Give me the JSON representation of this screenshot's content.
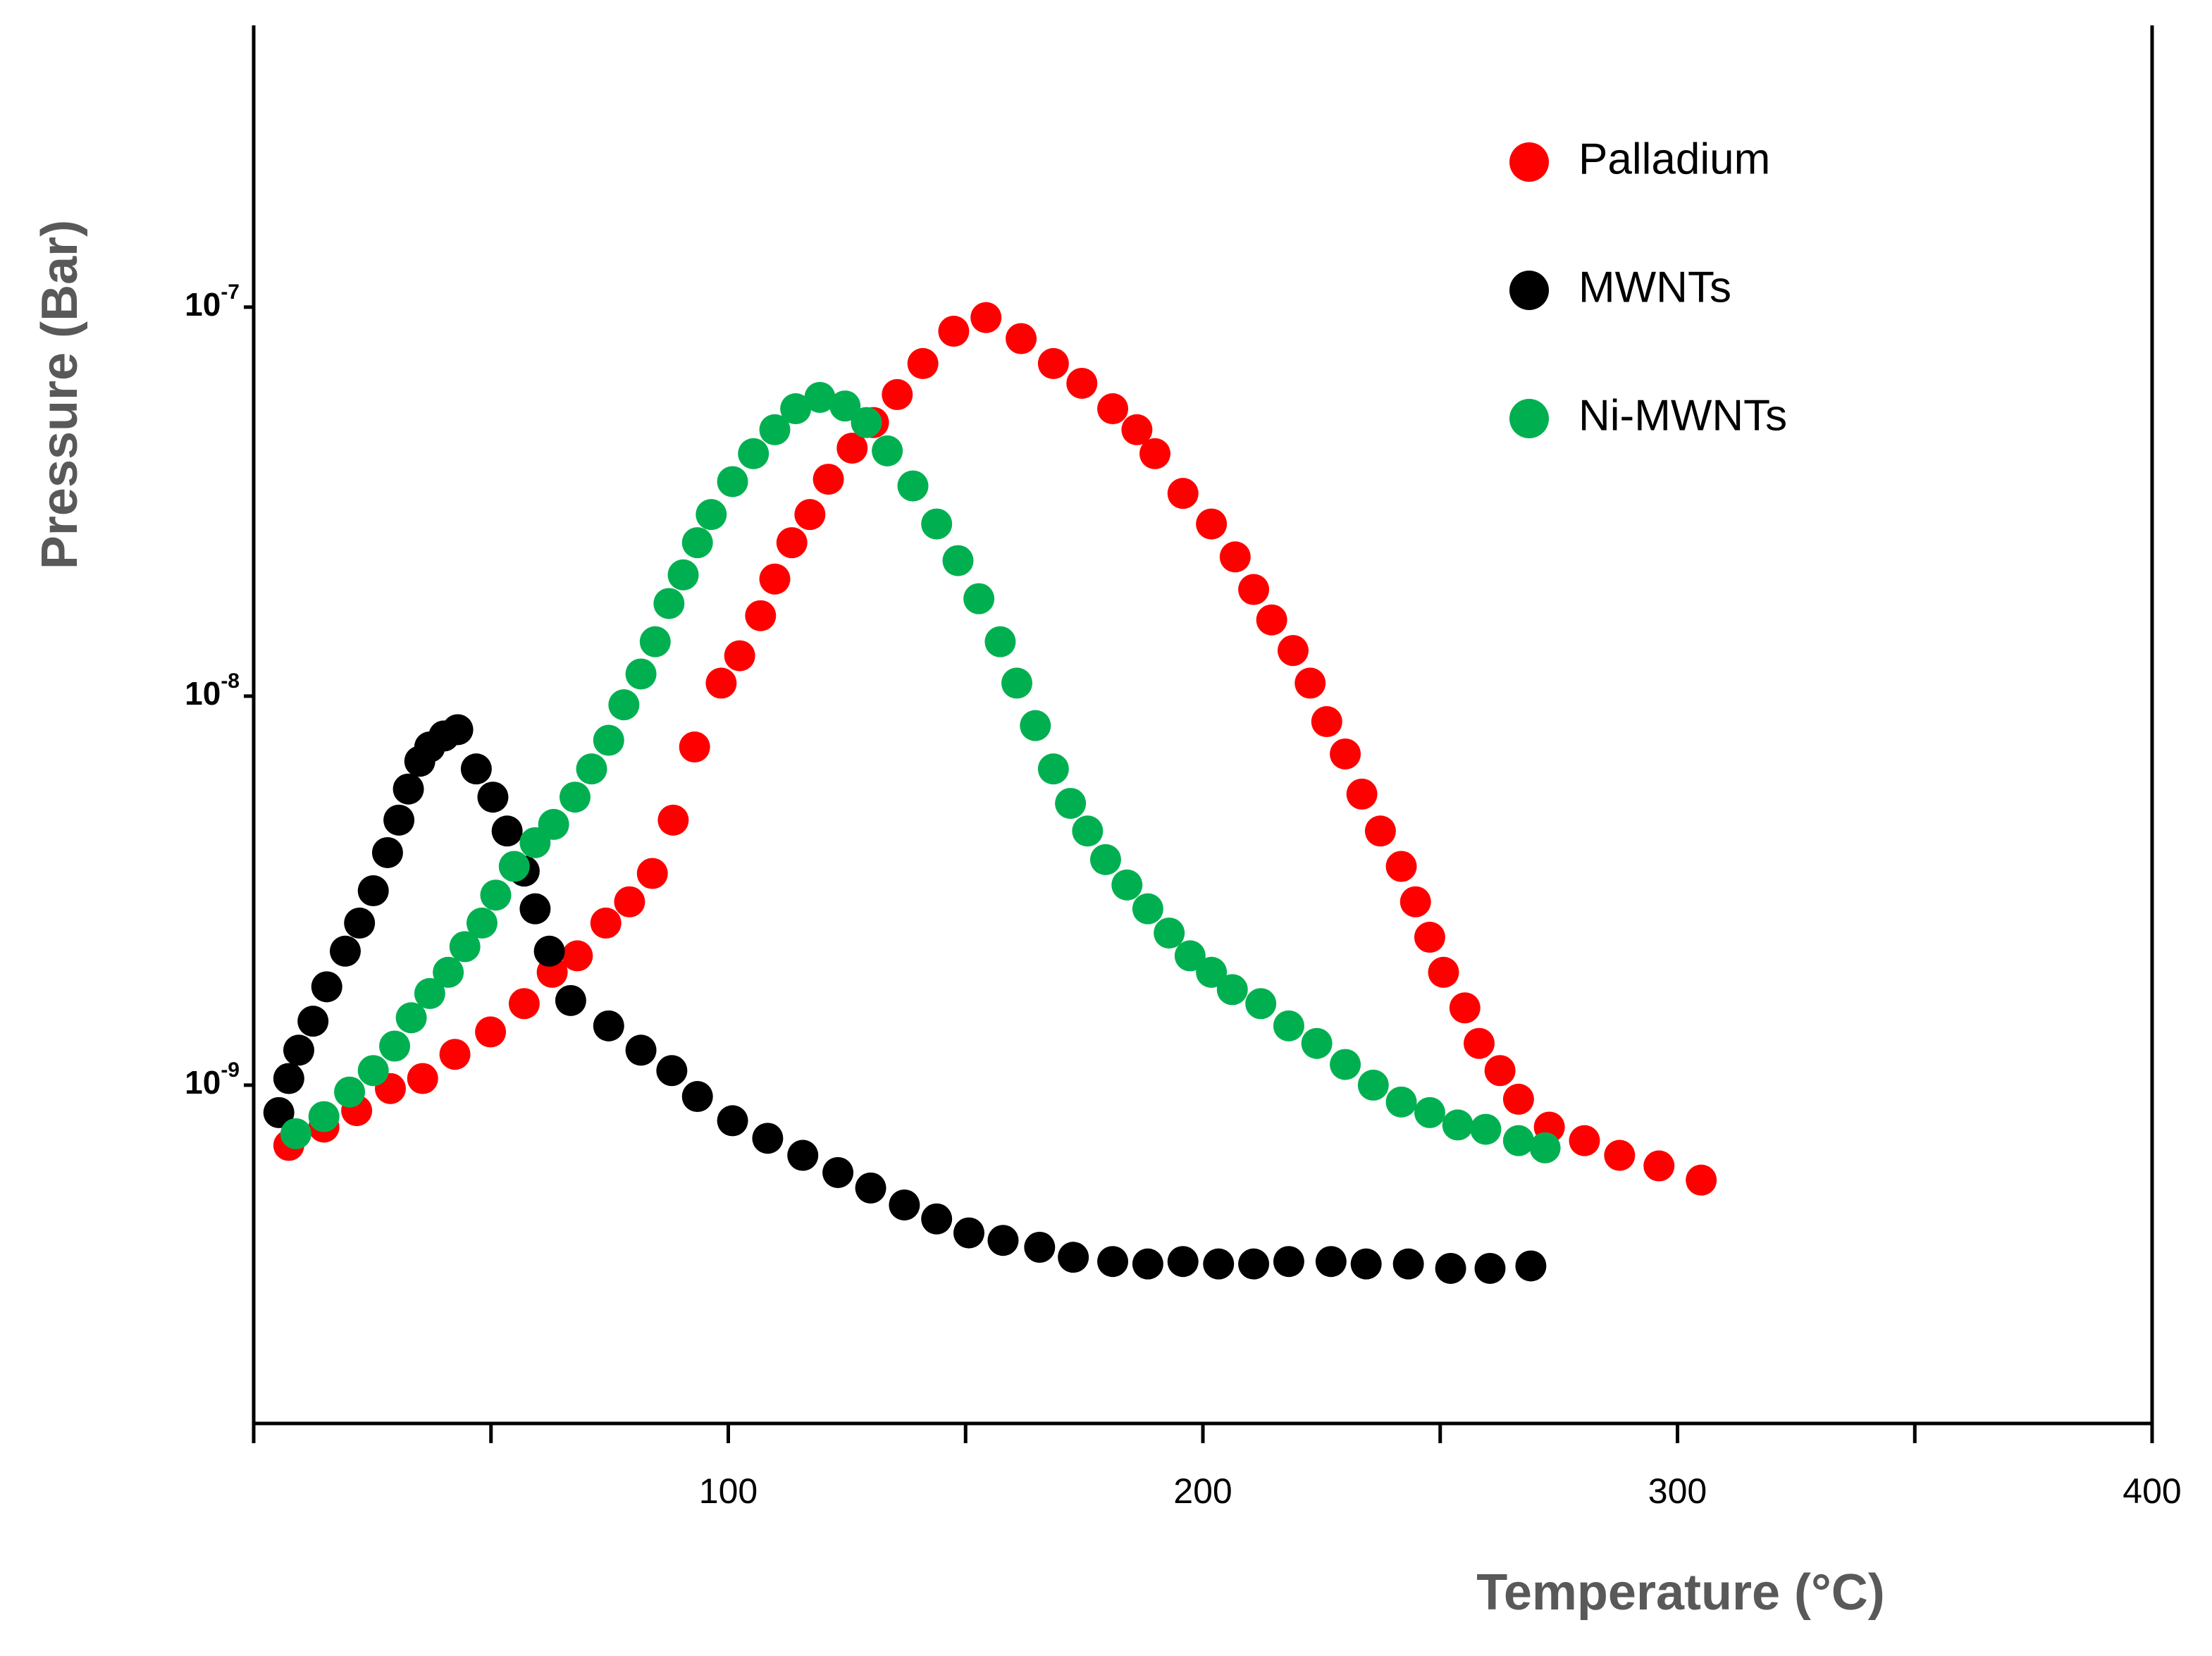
{
  "chart_data": {
    "type": "scatter",
    "xlabel": "Temperature (°C)",
    "ylabel": "Pressure (Bar)",
    "xlim": [
      0,
      400
    ],
    "xticks": [
      100,
      200,
      300,
      400
    ],
    "xminor_ticks": [
      0,
      50,
      150,
      250,
      350
    ],
    "ylim": [
      1.35e-10,
      5.3e-07
    ],
    "yscale": "log",
    "yticks": [
      {
        "value": 1e-09,
        "label": "10",
        "exponent": "-9"
      },
      {
        "value": 1e-08,
        "label": "10",
        "exponent": "-8"
      },
      {
        "value": 1e-07,
        "label": "10",
        "exponent": "-7"
      }
    ],
    "legend": "upper right",
    "grid": false,
    "series": [
      {
        "name": "Palladium",
        "color": "#ff0000",
        "x": [
          7.4,
          14.8,
          21.7,
          28.8,
          35.6,
          42.4,
          49.9,
          57.0,
          62.9,
          68.2,
          74.2,
          79.2,
          84.0,
          88.4,
          92.9,
          98.5,
          102.4,
          106.8,
          109.8,
          113.4,
          117.2,
          121.1,
          126.1,
          130.6,
          135.6,
          141.0,
          147.5,
          154.3,
          161.7,
          168.5,
          174.5,
          181.0,
          186.1,
          189.9,
          195.8,
          201.8,
          206.8,
          210.7,
          214.5,
          219.0,
          222.6,
          226.1,
          230.0,
          233.5,
          237.4,
          241.8,
          244.8,
          247.8,
          250.7,
          255.2,
          258.2,
          262.6,
          266.5,
          273.0,
          280.4,
          287.8,
          296.1,
          305.0
        ],
        "values": [
          7e-10,
          7.8e-10,
          8.6e-10,
          9.8e-10,
          1.04e-09,
          1.2e-09,
          1.37e-09,
          1.62e-09,
          1.95e-09,
          2.15e-09,
          2.61e-09,
          2.96e-09,
          3.5e-09,
          4.8e-09,
          7.4e-09,
          1.08e-08,
          1.27e-08,
          1.61e-08,
          2e-08,
          2.48e-08,
          2.93e-08,
          3.61e-08,
          4.34e-08,
          5.05e-08,
          5.96e-08,
          7.16e-08,
          8.67e-08,
          9.4e-08,
          8.3e-08,
          7.16e-08,
          6.37e-08,
          5.48e-08,
          4.84e-08,
          4.2e-08,
          3.32e-08,
          2.77e-08,
          2.28e-08,
          1.88e-08,
          1.57e-08,
          1.31e-08,
          1.08e-08,
          8.6e-09,
          7.1e-09,
          5.6e-09,
          4.5e-09,
          3.65e-09,
          2.96e-09,
          2.4e-09,
          1.95e-09,
          1.58e-09,
          1.28e-09,
          1.09e-09,
          9.2e-10,
          7.8e-10,
          7.2e-10,
          6.6e-10,
          6.2e-10,
          5.7e-10
        ]
      },
      {
        "name": "MWNTs",
        "color": "#000000",
        "x": [
          5.3,
          7.4,
          9.5,
          12.5,
          15.4,
          19.3,
          22.3,
          25.2,
          28.2,
          30.6,
          32.6,
          35.0,
          37.1,
          40.1,
          43.0,
          46.9,
          50.4,
          53.4,
          57.0,
          59.3,
          62.3,
          66.8,
          74.8,
          81.6,
          88.1,
          93.5,
          100.9,
          108.3,
          115.7,
          123.1,
          130.0,
          137.1,
          143.9,
          150.7,
          157.9,
          165.6,
          172.7,
          181.0,
          188.4,
          195.8,
          203.3,
          210.7,
          218.1,
          227.0,
          234.4,
          243.3,
          252.2,
          260.5,
          269.1
        ],
        "values": [
          8.5e-10,
          1.04e-09,
          1.23e-09,
          1.46e-09,
          1.79e-09,
          2.21e-09,
          2.61e-09,
          3.16e-09,
          3.96e-09,
          4.8e-09,
          5.77e-09,
          6.8e-09,
          7.4e-09,
          7.9e-09,
          8.2e-09,
          6.5e-09,
          5.5e-09,
          4.5e-09,
          3.55e-09,
          2.84e-09,
          2.21e-09,
          1.65e-09,
          1.42e-09,
          1.23e-09,
          1.09e-09,
          9.35e-10,
          8.1e-10,
          7.3e-10,
          6.6e-10,
          5.96e-10,
          5.44e-10,
          4.92e-10,
          4.53e-10,
          4.17e-10,
          3.99e-10,
          3.83e-10,
          3.61e-10,
          3.52e-10,
          3.47e-10,
          3.52e-10,
          3.47e-10,
          3.47e-10,
          3.52e-10,
          3.52e-10,
          3.47e-10,
          3.47e-10,
          3.38e-10,
          3.38e-10,
          3.43e-10
        ]
      },
      {
        "name": "Ni-MWNTs",
        "color": "#00b050",
        "x": [
          8.9,
          14.8,
          20.2,
          25.2,
          29.7,
          33.2,
          37.1,
          41.0,
          44.5,
          48.1,
          51.0,
          54.9,
          59.3,
          63.2,
          67.7,
          71.2,
          74.8,
          78.0,
          81.6,
          84.6,
          87.5,
          90.5,
          93.5,
          96.4,
          100.9,
          105.3,
          109.8,
          114.2,
          119.3,
          124.6,
          129.1,
          133.5,
          138.9,
          143.9,
          148.4,
          152.8,
          157.3,
          160.8,
          164.7,
          168.5,
          172.1,
          175.7,
          179.5,
          184.0,
          188.4,
          192.9,
          197.3,
          201.8,
          206.2,
          212.2,
          218.1,
          224.0,
          230.0,
          235.9,
          241.8,
          247.8,
          253.7,
          259.6,
          266.5,
          272.1
        ],
        "values": [
          7.5e-10,
          8.3e-10,
          9.6e-10,
          1.09e-09,
          1.26e-09,
          1.49e-09,
          1.72e-09,
          1.95e-09,
          2.27e-09,
          2.61e-09,
          3.08e-09,
          3.65e-09,
          4.2e-09,
          4.68e-09,
          5.5e-09,
          6.5e-09,
          7.7e-09,
          9.5e-09,
          1.14e-08,
          1.38e-08,
          1.73e-08,
          2.05e-08,
          2.48e-08,
          2.93e-08,
          3.56e-08,
          4.2e-08,
          4.84e-08,
          5.48e-08,
          5.86e-08,
          5.57e-08,
          5.05e-08,
          4.27e-08,
          3.47e-08,
          2.77e-08,
          2.23e-08,
          1.78e-08,
          1.38e-08,
          1.08e-08,
          8.4e-09,
          6.5e-09,
          5.3e-09,
          4.5e-09,
          3.8e-09,
          3.27e-09,
          2.84e-09,
          2.46e-09,
          2.15e-09,
          1.95e-09,
          1.76e-09,
          1.62e-09,
          1.42e-09,
          1.28e-09,
          1.13e-09,
          1e-09,
          9.05e-10,
          8.5e-10,
          7.9e-10,
          7.7e-10,
          7.2e-10,
          6.9e-10
        ]
      }
    ]
  }
}
